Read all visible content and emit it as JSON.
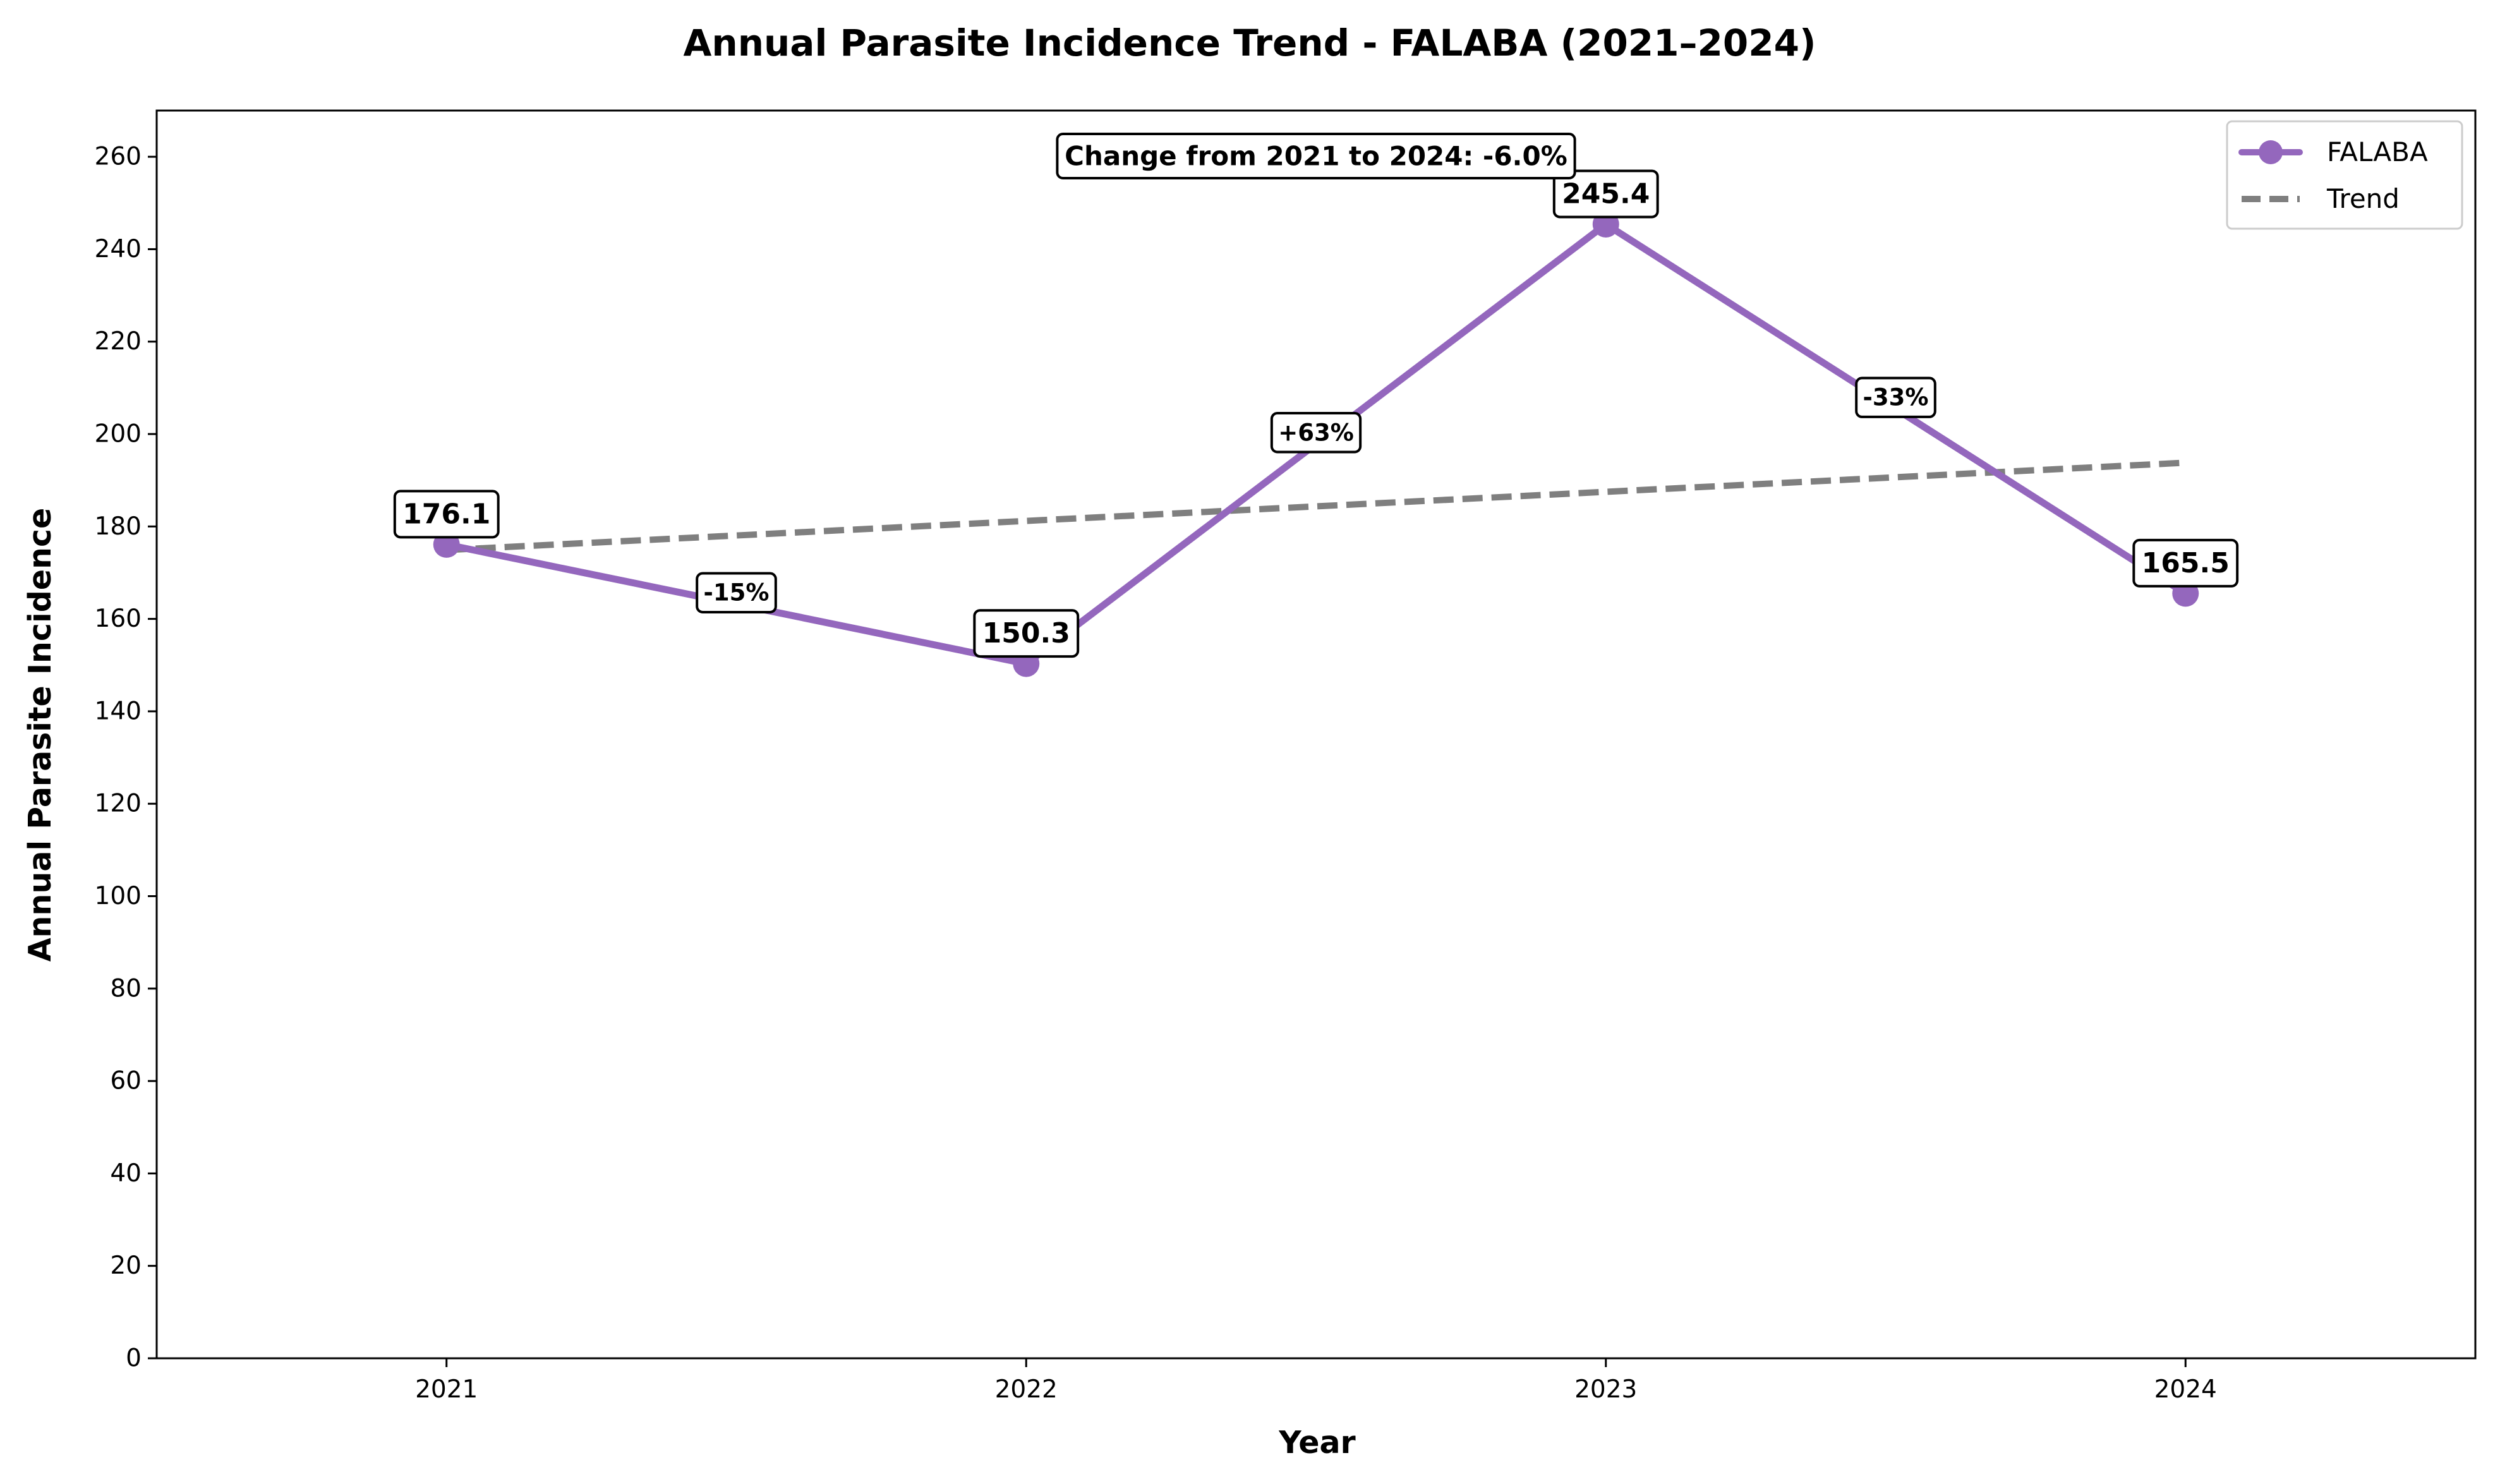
{
  "chart_data": {
    "type": "line",
    "title": "Annual Parasite Incidence Trend - FALABA (2021–2024)",
    "xlabel": "Year",
    "ylabel": "Annual Parasite Incidence",
    "x": [
      2021,
      2022,
      2023,
      2024
    ],
    "x_tick_labels": [
      "2021",
      "2022",
      "2023",
      "2024"
    ],
    "xlim": [
      2020.5,
      2024.5
    ],
    "ylim": [
      0,
      270
    ],
    "y_ticks": [
      0,
      20,
      40,
      60,
      80,
      100,
      120,
      140,
      160,
      180,
      200,
      220,
      240,
      260
    ],
    "series": [
      {
        "name": "FALABA",
        "values": [
          176.1,
          150.3,
          245.4,
          165.5
        ],
        "value_labels": [
          "176.1",
          "150.3",
          "245.4",
          "165.5"
        ],
        "color": "#9467bd",
        "style": "solid",
        "marker": "circle"
      },
      {
        "name": "Trend",
        "x": [
          2021,
          2024
        ],
        "values": [
          174.9,
          193.8
        ],
        "color": "#7f7f7f",
        "style": "dashed"
      }
    ],
    "segment_change_labels": [
      "-15%",
      "+63%",
      "-33%"
    ],
    "annotation": "Change from 2021 to 2024: -6.0%",
    "legend_position": "top-right",
    "grid": false
  }
}
